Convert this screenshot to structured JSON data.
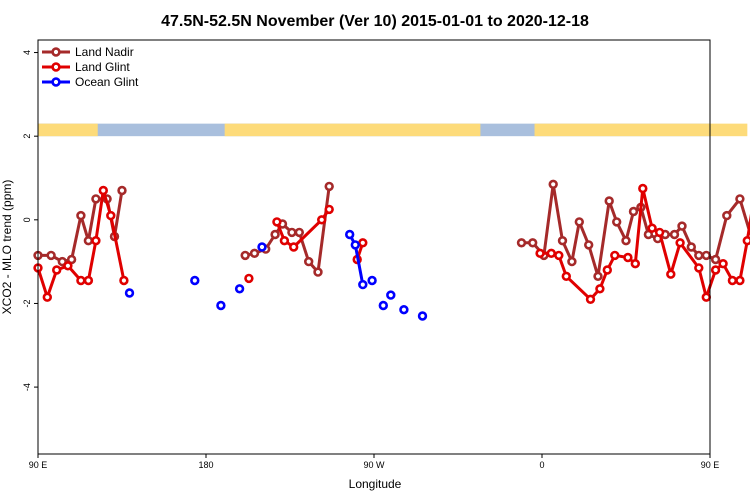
{
  "chart_data": {
    "type": "line",
    "title": "47.5N-52.5N November (Ver 10)   2015-01-01 to 2020-12-18",
    "xlabel": "Longitude",
    "ylabel": "XCO2 - MLO trend (ppm)",
    "xlim": [
      90,
      450
    ],
    "ylim": [
      -5.6,
      4.3
    ],
    "x_ticks": [
      {
        "value": 90,
        "label": "90 E"
      },
      {
        "value": 180,
        "label": "180"
      },
      {
        "value": 270,
        "label": "90 W"
      },
      {
        "value": 360,
        "label": "0"
      },
      {
        "value": 450,
        "label": "90 E"
      },
      {
        "value": 540,
        "label": "180"
      }
    ],
    "y_ticks": [
      {
        "value": 4,
        "label": "4"
      },
      {
        "value": 2,
        "label": "2"
      },
      {
        "value": 0,
        "label": "0"
      },
      {
        "value": -2,
        "label": "-2"
      },
      {
        "value": -4,
        "label": "-4"
      }
    ],
    "grid": false,
    "legend_position": "top-left",
    "land_mask_band": {
      "y_range": [
        2.0,
        2.3
      ],
      "colors": {
        "ocean": "#a9bfdd",
        "land": "#fddb7a"
      }
    },
    "series": [
      {
        "name": "Land Nadir",
        "color": "#a52a2a",
        "segments": [
          [
            [
              90,
              -0.85
            ],
            [
              97,
              -0.85
            ],
            [
              103,
              -1.0
            ],
            [
              108,
              -0.95
            ],
            [
              113,
              0.1
            ],
            [
              117,
              -0.5
            ],
            [
              121,
              0.5
            ],
            [
              127,
              0.5
            ],
            [
              131,
              -0.4
            ],
            [
              135,
              0.7
            ]
          ],
          [
            [
              201,
              -0.85
            ],
            [
              206,
              -0.8
            ],
            [
              212,
              -0.7
            ],
            [
              217,
              -0.35
            ],
            [
              221,
              -0.1
            ],
            [
              226,
              -0.3
            ],
            [
              230,
              -0.3
            ],
            [
              235,
              -1.0
            ],
            [
              240,
              -1.25
            ],
            [
              246,
              0.8
            ]
          ],
          [
            [
              349,
              -0.55
            ],
            [
              355,
              -0.55
            ],
            [
              361,
              -0.85
            ],
            [
              366,
              0.85
            ],
            [
              371,
              -0.5
            ],
            [
              376,
              -1.0
            ],
            [
              380,
              -0.05
            ],
            [
              385,
              -0.6
            ],
            [
              390,
              -1.35
            ],
            [
              396,
              0.45
            ],
            [
              400,
              -0.05
            ],
            [
              405,
              -0.5
            ],
            [
              409,
              0.2
            ],
            [
              413,
              0.3
            ],
            [
              417,
              -0.35
            ],
            [
              422,
              -0.45
            ],
            [
              426,
              -0.35
            ],
            [
              431,
              -0.35
            ],
            [
              435,
              -0.15
            ],
            [
              440,
              -0.65
            ],
            [
              444,
              -0.85
            ],
            [
              448,
              -0.85
            ],
            [
              453,
              -0.95
            ],
            [
              459,
              0.1
            ],
            [
              466,
              0.5
            ],
            [
              472,
              -0.4
            ],
            [
              476,
              0.7
            ]
          ]
        ]
      },
      {
        "name": "Land Glint",
        "color": "#e00000",
        "segments": [
          [
            [
              90,
              -1.15
            ],
            [
              95,
              -1.85
            ],
            [
              100,
              -1.2
            ],
            [
              106,
              -1.1
            ],
            [
              113,
              -1.45
            ],
            [
              117,
              -1.45
            ],
            [
              121,
              -0.5
            ],
            [
              125,
              0.7
            ],
            [
              129,
              0.1
            ],
            [
              136,
              -1.45
            ]
          ],
          [
            [
              203,
              -1.4
            ]
          ],
          [
            [
              218,
              -0.05
            ],
            [
              222,
              -0.5
            ],
            [
              227,
              -0.65
            ],
            [
              242,
              0.0
            ],
            [
              246,
              0.25
            ]
          ],
          [
            [
              261,
              -0.95
            ],
            [
              264,
              -0.55
            ]
          ],
          [
            [
              359,
              -0.8
            ],
            [
              365,
              -0.8
            ],
            [
              369,
              -0.85
            ],
            [
              373,
              -1.35
            ],
            [
              386,
              -1.9
            ],
            [
              391,
              -1.65
            ],
            [
              395,
              -1.2
            ],
            [
              399,
              -0.85
            ],
            [
              406,
              -0.9
            ],
            [
              410,
              -1.05
            ],
            [
              414,
              0.75
            ],
            [
              419,
              -0.2
            ],
            [
              423,
              -0.3
            ],
            [
              429,
              -1.3
            ],
            [
              434,
              -0.55
            ],
            [
              444,
              -1.15
            ],
            [
              448,
              -1.85
            ],
            [
              453,
              -1.2
            ],
            [
              457,
              -1.05
            ],
            [
              462,
              -1.45
            ],
            [
              466,
              -1.45
            ],
            [
              470,
              -0.5
            ],
            [
              474,
              0.65
            ],
            [
              478,
              0.1
            ],
            [
              483,
              -1.45
            ]
          ]
        ]
      },
      {
        "name": "Ocean Glint",
        "color": "#0000ff",
        "segments": [
          [
            [
              139,
              -1.75
            ]
          ],
          [
            [
              174,
              -1.45
            ]
          ],
          [
            [
              188,
              -2.05
            ]
          ],
          [
            [
              198,
              -1.65
            ]
          ],
          [
            [
              210,
              -0.65
            ]
          ],
          [
            [
              257,
              -0.35
            ],
            [
              260,
              -0.6
            ],
            [
              264,
              -1.55
            ]
          ],
          [
            [
              269,
              -1.45
            ]
          ],
          [
            [
              275,
              -2.05
            ]
          ],
          [
            [
              279,
              -1.8
            ]
          ],
          [
            [
              286,
              -2.15
            ]
          ],
          [
            [
              296,
              -2.3
            ]
          ],
          [
            [
              486,
              -1.75
            ]
          ]
        ]
      }
    ]
  }
}
